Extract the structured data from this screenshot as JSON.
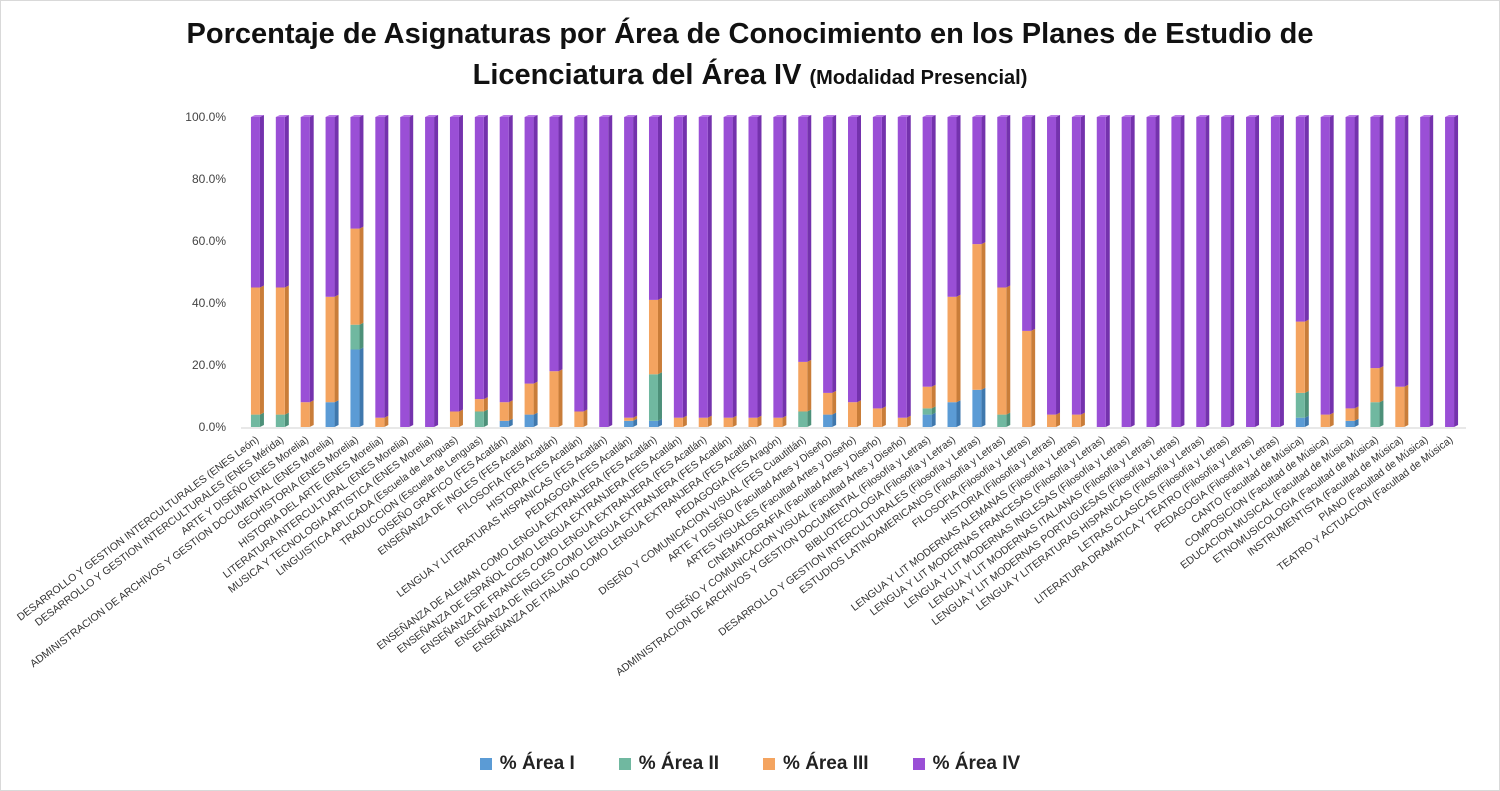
{
  "title_line1": "Porcentaje de Asignaturas por Área de Conocimiento en los Planes de Estudio de",
  "title_line2": "Licenciatura del Área IV",
  "title_suffix": "(Modalidad Presencial)",
  "colors": {
    "area_i": "#5b9bd5",
    "area_ii": "#70b8a0",
    "area_iii": "#f4a460",
    "area_iv": "#9a4fd6"
  },
  "chart_data": {
    "type": "bar",
    "stacked": true,
    "title": "Porcentaje de Asignaturas por Área de Conocimiento en los Planes de Estudio de Licenciatura del Área IV (Modalidad Presencial)",
    "xlabel": "",
    "ylabel": "",
    "ylim": [
      0,
      100
    ],
    "yticks": [
      "0.0%",
      "20.0%",
      "40.0%",
      "60.0%",
      "80.0%",
      "100.0%"
    ],
    "grid": false,
    "legend_position": "bottom",
    "categories": [
      "DESARROLLO Y GESTION INTERCULTURALES (ENES León)",
      "DESARROLLO Y GESTION INTERCULTURALES (ENES Mérida)",
      "ARTE Y DISEÑO (ENES Morelia)",
      "ADMINISTRACION DE ARCHIVOS Y GESTION DOCUMENTAL (ENES Morelia)",
      "GEOHISTORIA (ENES Morelia)",
      "HISTORIA DEL ARTE (ENES Morelia)",
      "LITERATURA INTERCULTURAL (ENES Morelia)",
      "MUSICA Y TECNOLOGIA ARTISTICA (ENES Morelia)",
      "LINGUISTICA APLICADA (Escuela de Lenguas)",
      "TRADUCCION (Escuela de Lenguas)",
      "DISEÑO GRAFICO (FES Acatlán)",
      "ENSEÑANZA DE INGLES (FES Acatlán)",
      "FILOSOFIA (FES Acatlán)",
      "HISTORIA (FES Acatlán)",
      "LENGUA Y LITERATURAS HISPANICAS (FES Acatlán)",
      "PEDAGOGIA (FES Acatlán)",
      "ENSEÑANZA DE ALEMAN COMO LENGUA EXTRANJERA (FES Acatlán)",
      "ENSEÑANZA DE ESPAÑOL COMO LENGUA EXTRANJERA (FES Acatlán)",
      "ENSEÑANZA DE FRANCES COMO LENGUA EXTRANJERA (FES Acatlán)",
      "ENSEÑANZA DE INGLES COMO LENGUA EXTRANJERA (FES Acatlán)",
      "ENSEÑANZA DE ITALIANO COMO LENGUA EXTRANJERA (FES Acatlán)",
      "PEDAGOGIA (FES Aragón)",
      "DISEÑO Y COMUNICACION VISUAL (FES Cuautitlán)",
      "ARTE Y DISEÑO (Facultad Artes y Diseño)",
      "ARTES VISUALES (Facultad Artes y Diseño)",
      "CINEMATOGRAFIA (Facultad Artes y Diseño)",
      "DISEÑO Y COMUNICACION VISUAL (Facultad Artes y Diseño)",
      "ADMINISTRACION DE ARCHIVOS Y GESTION DOCUMENTAL (Filosofía y Letras)",
      "BIBLIOTECOLOGIA (Filosofía y Letras)",
      "DESARROLLO Y GESTION INTERCULTURALES (Filosofía y Letras)",
      "ESTUDIOS LATINOAMERICANOS (Filosofía y Letras)",
      "FILOSOFIA (Filosofía y Letras)",
      "HISTORIA (Filosofía y Letras)",
      "LENGUA Y LIT MODERNAS ALEMANAS (Filosofía y Letras)",
      "LENGUA Y LIT MODERNAS FRANCESAS (Filosofía y Letras)",
      "LENGUA Y LIT MODERNAS INGLESAS (Filosofía y Letras)",
      "LENGUA Y LIT MODERNAS ITALIANAS (Filosofía y Letras)",
      "LENGUA Y LIT MODERNAS PORTUGUESAS (Filosofía y Letras)",
      "LENGUA Y LITERATURAS HISPANICAS (Filosofía y Letras)",
      "LETRAS CLASICAS (Filosofía y Letras)",
      "LITERATURA DRAMATICA Y TEATRO (Filosofía y Letras)",
      "PEDAGOGIA (Filosofía y Letras)",
      "CANTO (Facultad de Música)",
      "COMPOSICION (Facultad de Música)",
      "EDUCACION MUSICAL (Facultad de Música)",
      "ETNOMUSICOLOGIA (Facultad de Música)",
      "INSTRUMENTISTA (Facultad de Música)",
      "PIANO (Facultad de Música)",
      "TEATRO Y ACTUACION (Facultad de Música)"
    ],
    "series": [
      {
        "name": "% Área I",
        "values": [
          0,
          0,
          0,
          8,
          25,
          0,
          0,
          0,
          0,
          0,
          2,
          4,
          0,
          0,
          0,
          2,
          2,
          0,
          0,
          0,
          0,
          0,
          0,
          4,
          0,
          0,
          0,
          4,
          8,
          12,
          0,
          0,
          0,
          0,
          0,
          0,
          0,
          0,
          0,
          0,
          0,
          0,
          3,
          0,
          2,
          0,
          0,
          0,
          0
        ]
      },
      {
        "name": "% Área II",
        "values": [
          4,
          4,
          0,
          0,
          8,
          0,
          0,
          0,
          0,
          5,
          0,
          0,
          0,
          0,
          0,
          0,
          15,
          0,
          0,
          0,
          0,
          0,
          5,
          0,
          0,
          0,
          0,
          2,
          0,
          0,
          4,
          0,
          0,
          0,
          0,
          0,
          0,
          0,
          0,
          0,
          0,
          0,
          8,
          0,
          0,
          8,
          0,
          0,
          0
        ]
      },
      {
        "name": "% Área III",
        "values": [
          41,
          41,
          8,
          34,
          31,
          3,
          0,
          0,
          5,
          4,
          6,
          10,
          18,
          5,
          0,
          1,
          24,
          3,
          3,
          3,
          3,
          3,
          16,
          7,
          8,
          6,
          3,
          7,
          34,
          47,
          41,
          31,
          4,
          4,
          0,
          0,
          0,
          0,
          0,
          0,
          0,
          0,
          23,
          4,
          4,
          11,
          13,
          0,
          0
        ]
      },
      {
        "name": "% Área IV",
        "values": [
          55,
          55,
          92,
          58,
          36,
          97,
          100,
          100,
          95,
          91,
          92,
          86,
          82,
          95,
          100,
          97,
          59,
          97,
          97,
          97,
          97,
          97,
          79,
          89,
          92,
          94,
          97,
          87,
          58,
          41,
          55,
          69,
          96,
          96,
          100,
          100,
          100,
          100,
          100,
          100,
          100,
          100,
          66,
          96,
          94,
          81,
          87,
          100,
          100
        ]
      }
    ]
  }
}
